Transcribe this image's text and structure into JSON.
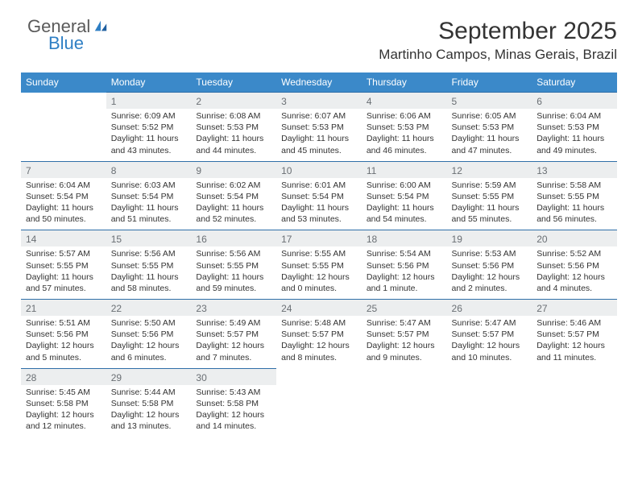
{
  "brand": {
    "general": "General",
    "blue": "Blue",
    "icon_color": "#2f7fc4"
  },
  "title": "September 2025",
  "location": "Martinho Campos, Minas Gerais, Brazil",
  "colors": {
    "header_bg": "#3b89c9",
    "header_text": "#ffffff",
    "daynum_bg": "#eceeef",
    "daynum_text": "#6a6f74",
    "cell_border": "#2f6fa8",
    "body_text": "#333333"
  },
  "day_headers": [
    "Sunday",
    "Monday",
    "Tuesday",
    "Wednesday",
    "Thursday",
    "Friday",
    "Saturday"
  ],
  "weeks": [
    [
      {
        "empty": true
      },
      {
        "num": "1",
        "sunrise": "Sunrise: 6:09 AM",
        "sunset": "Sunset: 5:52 PM",
        "daylight": "Daylight: 11 hours and 43 minutes."
      },
      {
        "num": "2",
        "sunrise": "Sunrise: 6:08 AM",
        "sunset": "Sunset: 5:53 PM",
        "daylight": "Daylight: 11 hours and 44 minutes."
      },
      {
        "num": "3",
        "sunrise": "Sunrise: 6:07 AM",
        "sunset": "Sunset: 5:53 PM",
        "daylight": "Daylight: 11 hours and 45 minutes."
      },
      {
        "num": "4",
        "sunrise": "Sunrise: 6:06 AM",
        "sunset": "Sunset: 5:53 PM",
        "daylight": "Daylight: 11 hours and 46 minutes."
      },
      {
        "num": "5",
        "sunrise": "Sunrise: 6:05 AM",
        "sunset": "Sunset: 5:53 PM",
        "daylight": "Daylight: 11 hours and 47 minutes."
      },
      {
        "num": "6",
        "sunrise": "Sunrise: 6:04 AM",
        "sunset": "Sunset: 5:53 PM",
        "daylight": "Daylight: 11 hours and 49 minutes."
      }
    ],
    [
      {
        "num": "7",
        "sunrise": "Sunrise: 6:04 AM",
        "sunset": "Sunset: 5:54 PM",
        "daylight": "Daylight: 11 hours and 50 minutes."
      },
      {
        "num": "8",
        "sunrise": "Sunrise: 6:03 AM",
        "sunset": "Sunset: 5:54 PM",
        "daylight": "Daylight: 11 hours and 51 minutes."
      },
      {
        "num": "9",
        "sunrise": "Sunrise: 6:02 AM",
        "sunset": "Sunset: 5:54 PM",
        "daylight": "Daylight: 11 hours and 52 minutes."
      },
      {
        "num": "10",
        "sunrise": "Sunrise: 6:01 AM",
        "sunset": "Sunset: 5:54 PM",
        "daylight": "Daylight: 11 hours and 53 minutes."
      },
      {
        "num": "11",
        "sunrise": "Sunrise: 6:00 AM",
        "sunset": "Sunset: 5:54 PM",
        "daylight": "Daylight: 11 hours and 54 minutes."
      },
      {
        "num": "12",
        "sunrise": "Sunrise: 5:59 AM",
        "sunset": "Sunset: 5:55 PM",
        "daylight": "Daylight: 11 hours and 55 minutes."
      },
      {
        "num": "13",
        "sunrise": "Sunrise: 5:58 AM",
        "sunset": "Sunset: 5:55 PM",
        "daylight": "Daylight: 11 hours and 56 minutes."
      }
    ],
    [
      {
        "num": "14",
        "sunrise": "Sunrise: 5:57 AM",
        "sunset": "Sunset: 5:55 PM",
        "daylight": "Daylight: 11 hours and 57 minutes."
      },
      {
        "num": "15",
        "sunrise": "Sunrise: 5:56 AM",
        "sunset": "Sunset: 5:55 PM",
        "daylight": "Daylight: 11 hours and 58 minutes."
      },
      {
        "num": "16",
        "sunrise": "Sunrise: 5:56 AM",
        "sunset": "Sunset: 5:55 PM",
        "daylight": "Daylight: 11 hours and 59 minutes."
      },
      {
        "num": "17",
        "sunrise": "Sunrise: 5:55 AM",
        "sunset": "Sunset: 5:55 PM",
        "daylight": "Daylight: 12 hours and 0 minutes."
      },
      {
        "num": "18",
        "sunrise": "Sunrise: 5:54 AM",
        "sunset": "Sunset: 5:56 PM",
        "daylight": "Daylight: 12 hours and 1 minute."
      },
      {
        "num": "19",
        "sunrise": "Sunrise: 5:53 AM",
        "sunset": "Sunset: 5:56 PM",
        "daylight": "Daylight: 12 hours and 2 minutes."
      },
      {
        "num": "20",
        "sunrise": "Sunrise: 5:52 AM",
        "sunset": "Sunset: 5:56 PM",
        "daylight": "Daylight: 12 hours and 4 minutes."
      }
    ],
    [
      {
        "num": "21",
        "sunrise": "Sunrise: 5:51 AM",
        "sunset": "Sunset: 5:56 PM",
        "daylight": "Daylight: 12 hours and 5 minutes."
      },
      {
        "num": "22",
        "sunrise": "Sunrise: 5:50 AM",
        "sunset": "Sunset: 5:56 PM",
        "daylight": "Daylight: 12 hours and 6 minutes."
      },
      {
        "num": "23",
        "sunrise": "Sunrise: 5:49 AM",
        "sunset": "Sunset: 5:57 PM",
        "daylight": "Daylight: 12 hours and 7 minutes."
      },
      {
        "num": "24",
        "sunrise": "Sunrise: 5:48 AM",
        "sunset": "Sunset: 5:57 PM",
        "daylight": "Daylight: 12 hours and 8 minutes."
      },
      {
        "num": "25",
        "sunrise": "Sunrise: 5:47 AM",
        "sunset": "Sunset: 5:57 PM",
        "daylight": "Daylight: 12 hours and 9 minutes."
      },
      {
        "num": "26",
        "sunrise": "Sunrise: 5:47 AM",
        "sunset": "Sunset: 5:57 PM",
        "daylight": "Daylight: 12 hours and 10 minutes."
      },
      {
        "num": "27",
        "sunrise": "Sunrise: 5:46 AM",
        "sunset": "Sunset: 5:57 PM",
        "daylight": "Daylight: 12 hours and 11 minutes."
      }
    ],
    [
      {
        "num": "28",
        "sunrise": "Sunrise: 5:45 AM",
        "sunset": "Sunset: 5:58 PM",
        "daylight": "Daylight: 12 hours and 12 minutes."
      },
      {
        "num": "29",
        "sunrise": "Sunrise: 5:44 AM",
        "sunset": "Sunset: 5:58 PM",
        "daylight": "Daylight: 12 hours and 13 minutes."
      },
      {
        "num": "30",
        "sunrise": "Sunrise: 5:43 AM",
        "sunset": "Sunset: 5:58 PM",
        "daylight": "Daylight: 12 hours and 14 minutes."
      },
      {
        "empty": true
      },
      {
        "empty": true
      },
      {
        "empty": true
      },
      {
        "empty": true
      }
    ]
  ]
}
